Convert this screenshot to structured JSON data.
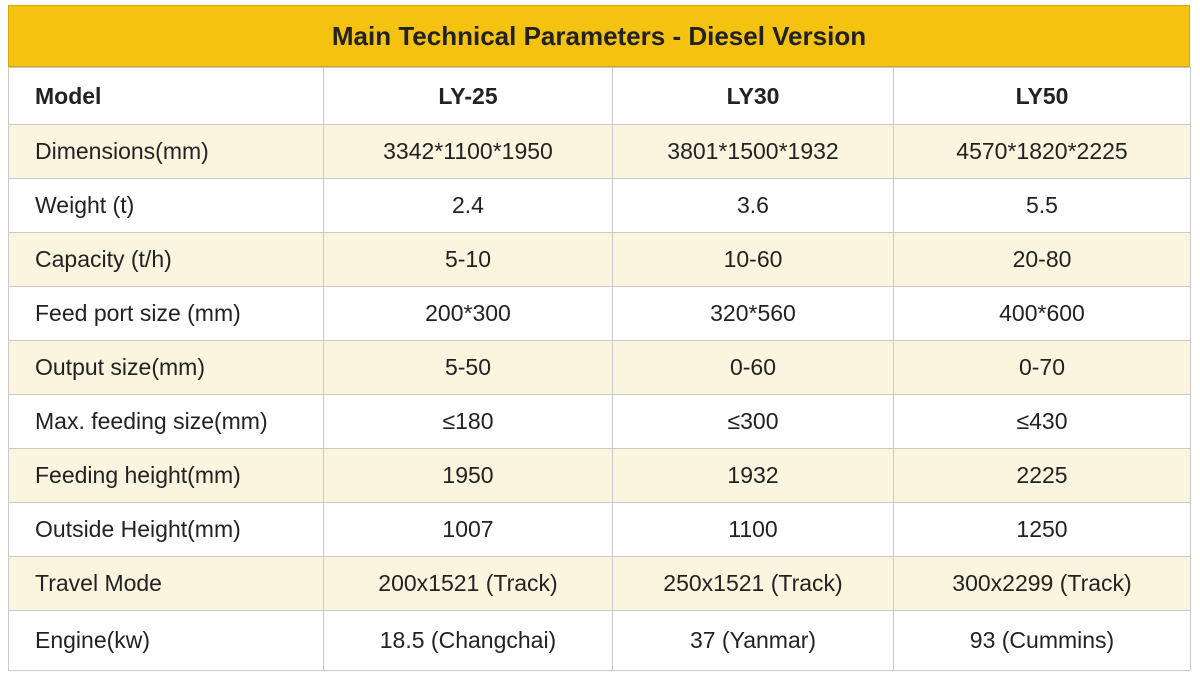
{
  "header": {
    "title": "Main Technical Parameters - Diesel Version"
  },
  "table": {
    "columns": [
      "Model",
      "LY-25",
      "LY30",
      "LY50"
    ],
    "rows": [
      [
        "Dimensions(mm)",
        "3342*1100*1950",
        "3801*1500*1932",
        "4570*1820*2225"
      ],
      [
        "Weight (t)",
        "2.4",
        "3.6",
        "5.5"
      ],
      [
        "Capacity (t/h)",
        "5-10",
        "10-60",
        "20-80"
      ],
      [
        "Feed port size (mm)",
        "200*300",
        "320*560",
        "400*600"
      ],
      [
        "Output size(mm)",
        "5-50",
        "0-60",
        "0-70"
      ],
      [
        "Max. feeding size(mm)",
        "≤180",
        "≤300",
        "≤430"
      ],
      [
        "Feeding height(mm)",
        "1950",
        "1932",
        "2225"
      ],
      [
        "Outside Height(mm)",
        "1007",
        "1100",
        "1250"
      ],
      [
        "Travel Mode",
        "200x1521 (Track)",
        "250x1521 (Track)",
        "300x2299 (Track)"
      ],
      [
        "Engine(kw)",
        "18.5 (Changchai)",
        "37 (Yanmar)",
        "93 (Cummins)"
      ]
    ]
  }
}
